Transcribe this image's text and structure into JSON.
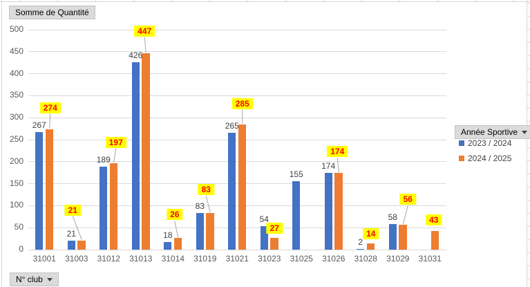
{
  "field_buttons": {
    "value": "Somme de Quantité",
    "legend": "Année Sportive",
    "axis": "N° club"
  },
  "colors": {
    "series1": "#4472C4",
    "series2": "#ED7D31",
    "highlight_bg": "#FFFF00",
    "highlight_text": "#FF0000",
    "plain_label_text": "#404040",
    "axis_text": "#595959",
    "gridline": "#D9D9D9",
    "leader_line": "#A6A6A6",
    "button_bg": "#DBDBDB"
  },
  "chart_data": {
    "type": "bar",
    "title": "Somme de Quantité",
    "categories": [
      "31001",
      "31003",
      "31012",
      "31013",
      "31014",
      "31019",
      "31021",
      "31023",
      "31025",
      "31026",
      "31028",
      "31029",
      "31031"
    ],
    "series": [
      {
        "name": "2023 / 2024",
        "color": "#4472C4",
        "values": [
          267,
          21,
          189,
          426,
          18,
          83,
          265,
          54,
          155,
          174,
          2,
          58,
          null
        ]
      },
      {
        "name": "2024 / 2025",
        "color": "#ED7D31",
        "values": [
          274,
          21,
          197,
          447,
          26,
          83,
          285,
          27,
          null,
          174,
          14,
          56,
          43
        ]
      }
    ],
    "xlabel": "N° club",
    "ylabel": "",
    "ylim": [
      0,
      500
    ],
    "ytick_step": 50,
    "grid": true,
    "legend_position": "right",
    "data_labels": "all",
    "highlighted_label_series": "2024 / 2025",
    "label_layout_series2": [
      {
        "dx": 1,
        "gap": 22
      },
      {
        "dx": -13,
        "gap": 35
      },
      {
        "dx": 3,
        "gap": 21
      },
      {
        "dx": -2,
        "gap": 23
      },
      {
        "dx": -5,
        "gap": 25
      },
      {
        "dx": -6,
        "gap": 25
      },
      {
        "dx": 0,
        "gap": 21
      },
      {
        "dx": 0,
        "gap": 5
      },
      null,
      {
        "dx": -2,
        "gap": 22
      },
      {
        "dx": 0,
        "gap": 5
      },
      {
        "dx": 7,
        "gap": 28
      },
      {
        "dx": -2,
        "gap": 7
      }
    ]
  }
}
